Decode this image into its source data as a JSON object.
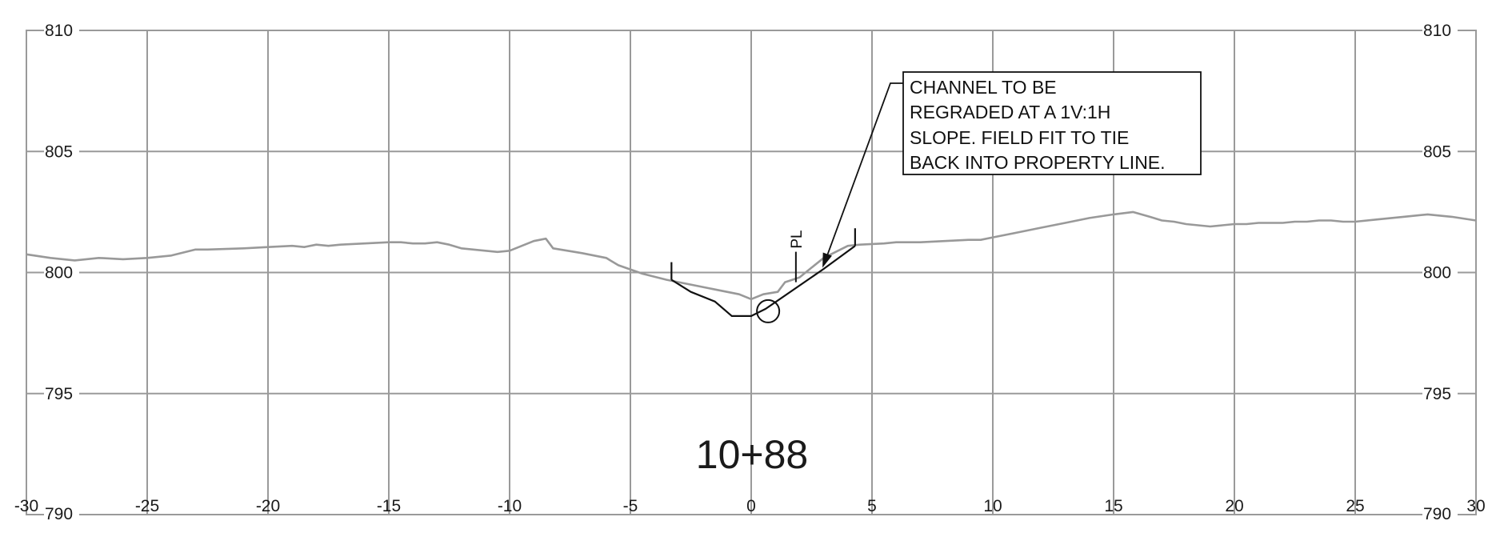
{
  "chart_data": {
    "type": "line",
    "title": "",
    "station_label": "10+88",
    "xlabel": "",
    "ylabel": "",
    "xlim": [
      -30,
      30
    ],
    "ylim": [
      790,
      810
    ],
    "x_ticks": [
      -30,
      -25,
      -20,
      -15,
      -10,
      -5,
      0,
      5,
      10,
      15,
      20,
      25,
      30
    ],
    "y_ticks": [
      790,
      795,
      800,
      805,
      810
    ],
    "grid": true,
    "colors": {
      "grid": "#9a9a9a",
      "existing_ground": "#999999",
      "proposed": "#111111",
      "text": "#1a1a1a"
    },
    "series": [
      {
        "id": "existing_ground",
        "x": [
          -30,
          -29,
          -28,
          -27,
          -26,
          -25,
          -24,
          -23,
          -22.5,
          -21,
          -20,
          -19,
          -18.5,
          -18,
          -17.5,
          -17,
          -16,
          -15,
          -14.5,
          -14,
          -13.5,
          -13,
          -12.5,
          -12,
          -11,
          -10.5,
          -10,
          -9,
          -8.5,
          -8.2,
          -7,
          -6,
          -5.5,
          -4.5,
          -3.5,
          -2.5,
          -1.5,
          -0.5,
          0,
          0.5,
          1.1,
          1.4,
          2,
          2.5,
          3,
          4,
          4.5,
          5.5,
          6,
          7,
          8,
          9,
          9.5,
          10,
          11,
          12,
          13,
          14,
          15,
          15.8,
          16.5,
          17,
          17.5,
          18,
          18.5,
          19,
          19.5,
          20,
          20.5,
          21,
          21.5,
          22,
          22.5,
          23,
          23.5,
          24,
          24.5,
          25,
          26,
          26.5,
          27,
          28,
          29,
          30
        ],
        "y": [
          800.75,
          800.6,
          800.5,
          800.6,
          800.55,
          800.6,
          800.7,
          800.95,
          800.95,
          801.0,
          801.05,
          801.1,
          801.05,
          801.15,
          801.1,
          801.15,
          801.2,
          801.25,
          801.25,
          801.2,
          801.2,
          801.25,
          801.15,
          801.0,
          800.9,
          800.85,
          800.9,
          801.3,
          801.4,
          801.0,
          800.8,
          800.6,
          800.3,
          799.95,
          799.7,
          799.5,
          799.3,
          799.1,
          798.9,
          799.1,
          799.2,
          799.6,
          799.8,
          800.2,
          800.6,
          801.1,
          801.15,
          801.2,
          801.25,
          801.25,
          801.3,
          801.35,
          801.35,
          801.45,
          801.65,
          801.85,
          802.05,
          802.25,
          802.4,
          802.5,
          802.3,
          802.15,
          802.1,
          802.0,
          801.95,
          801.9,
          801.95,
          802.0,
          802.0,
          802.05,
          802.05,
          802.05,
          802.1,
          802.1,
          802.15,
          802.15,
          802.1,
          802.1,
          802.2,
          802.25,
          802.3,
          802.4,
          802.3,
          802.15
        ]
      },
      {
        "id": "proposed_channel",
        "x": [
          -3.3,
          -2.5,
          -1.5,
          -0.8,
          0,
          0.6,
          3,
          4.3
        ],
        "y": [
          799.7,
          799.2,
          798.8,
          798.2,
          798.2,
          798.5,
          800.15,
          801.1
        ]
      }
    ],
    "markers": [
      {
        "type": "tick",
        "x": -3.3,
        "y": 799.7
      },
      {
        "type": "tick",
        "x": 4.3,
        "y": 801.1
      },
      {
        "type": "property-line",
        "x": 1.85,
        "y": 799.6,
        "label": "PL"
      },
      {
        "type": "circle",
        "x": 0.7,
        "y": 798.4
      }
    ],
    "annotation": {
      "lines": [
        "CHANNEL TO BE",
        "REGRADED AT A 1V:1H",
        "SLOPE. FIELD FIT TO TIE",
        "BACK INTO PROPERTY LINE."
      ],
      "arrow_target": {
        "x": 2.95,
        "y": 800.2
      }
    }
  }
}
